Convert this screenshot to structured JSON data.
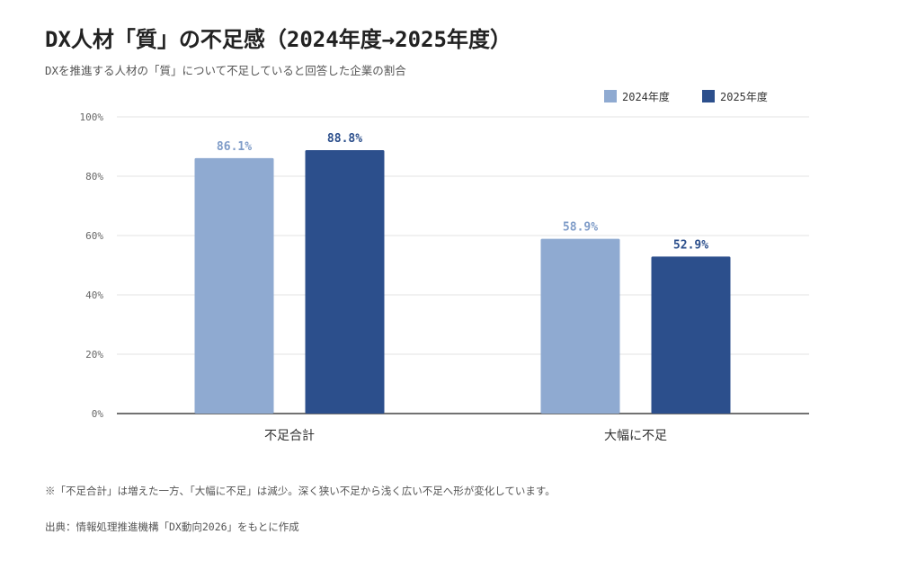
{
  "title": "DX人材「質」の不足感（2024年度→2025年度）",
  "subtitle": "DXを推進する人材の「質」について不足していると回答した企業の割合",
  "note": "※「不足合計」は増えた一方、「大幅に不足」は減少。深く狭い不足から浅く広い不足へ形が変化しています。",
  "source": "出典：情報処理推進機構「DX動向2026」をもとに作成",
  "chart_data": {
    "type": "bar",
    "categories": [
      "不足合計",
      "大幅に不足"
    ],
    "series": [
      {
        "name": "2024年度",
        "values": [
          86.1,
          58.9
        ],
        "color": "#8faad1",
        "label_color": "#7f9cc8"
      },
      {
        "name": "2025年度",
        "values": [
          88.8,
          52.9
        ],
        "color": "#2c4f8c",
        "label_color": "#2c4f8c"
      }
    ],
    "value_labels": [
      [
        "86.1%",
        "58.9%"
      ],
      [
        "88.8%",
        "52.9%"
      ]
    ],
    "ylim": [
      0,
      100
    ],
    "yticks": [
      0,
      20,
      40,
      60,
      80,
      100
    ],
    "ytick_labels": [
      "0%",
      "20%",
      "40%",
      "60%",
      "80%",
      "100%"
    ],
    "grid": true,
    "legend_position": "top-right",
    "xlabel": "",
    "ylabel": ""
  }
}
